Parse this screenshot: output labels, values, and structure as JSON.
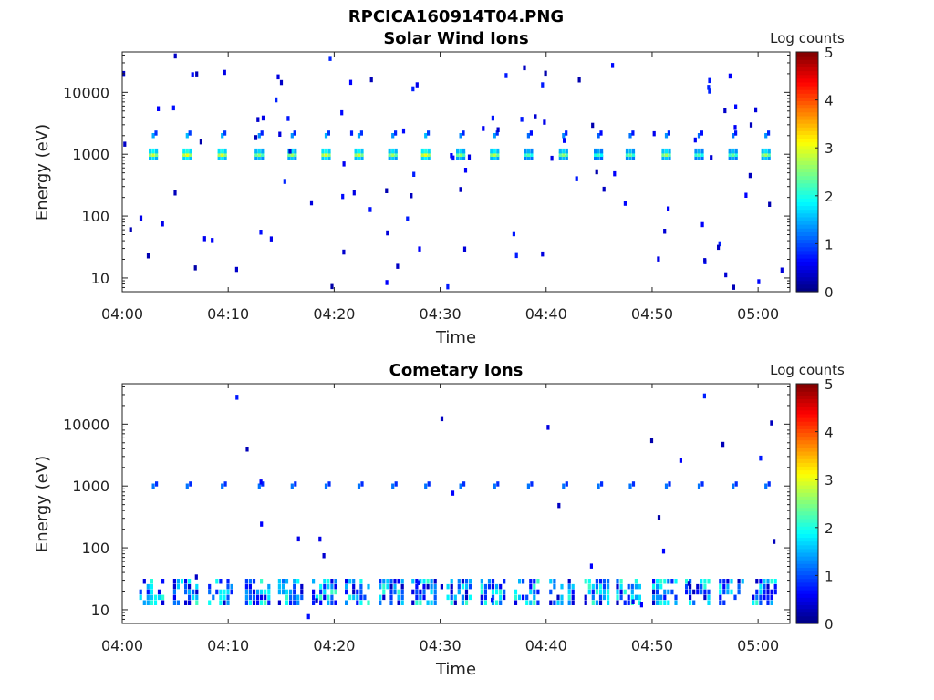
{
  "figure_title": "RPCICA160914T04.PNG",
  "chart_data": [
    {
      "type": "heatmap",
      "title": "Solar Wind Ions",
      "xlabel": "Time",
      "ylabel": "Energy (eV)",
      "xticks": [
        "04:00",
        "04:10",
        "04:20",
        "04:30",
        "04:40",
        "04:50",
        "05:00"
      ],
      "xlim_minutes": [
        0,
        63
      ],
      "yscale": "log",
      "ylim": [
        6,
        45000
      ],
      "yticks": [
        10,
        100,
        1000,
        10000
      ],
      "ytick_labels": [
        "10",
        "100",
        "1000",
        "10000"
      ],
      "colorbar": {
        "label": "Log counts",
        "min": 0,
        "max": 5,
        "ticks": [
          "0",
          "1",
          "2",
          "3",
          "4",
          "5"
        ]
      },
      "features": {
        "sweep_minutes": [
          2.8,
          6.0,
          9.3,
          12.8,
          15.9,
          19.1,
          22.2,
          25.4,
          28.5,
          31.8,
          35.0,
          38.2,
          41.5,
          44.8,
          47.8,
          51.2,
          54.3,
          57.5,
          60.6
        ],
        "peak_log_counts": [
          2.9,
          3.1,
          3.0,
          2.6,
          2.7,
          3.0,
          2.9,
          2.7,
          3.1,
          2.6,
          2.8,
          2.3,
          2.6,
          2.2,
          2.4,
          2.7,
          2.3,
          2.4,
          2.7
        ],
        "core_energy_eV": 1000,
        "secondary_energy_eV": 2000,
        "background_note": "sparse isolated low-count pixels"
      }
    },
    {
      "type": "heatmap",
      "title": "Cometary Ions",
      "xlabel": "Time",
      "ylabel": "Energy (eV)",
      "xticks": [
        "04:00",
        "04:10",
        "04:20",
        "04:30",
        "04:40",
        "04:50",
        "05:00"
      ],
      "xlim_minutes": [
        0,
        63
      ],
      "yscale": "log",
      "ylim": [
        6,
        45000
      ],
      "yticks": [
        10,
        100,
        1000,
        10000
      ],
      "ytick_labels": [
        "10",
        "100",
        "1000",
        "10000"
      ],
      "colorbar": {
        "label": "Log counts",
        "min": 0,
        "max": 5,
        "ticks": [
          "0",
          "1",
          "2",
          "3",
          "4",
          "5"
        ]
      },
      "features": {
        "sweep_minutes": [
          2.8,
          6.0,
          9.3,
          12.8,
          15.9,
          19.1,
          22.2,
          25.4,
          28.5,
          31.8,
          35.0,
          38.2,
          41.5,
          44.8,
          47.8,
          51.2,
          54.3,
          57.5,
          60.6
        ],
        "line_energy_eV": 1000,
        "line_log_counts": 1.2,
        "low_energy_band_eV": [
          13,
          32
        ],
        "low_energy_peak_log_counts": 1.9
      }
    }
  ]
}
